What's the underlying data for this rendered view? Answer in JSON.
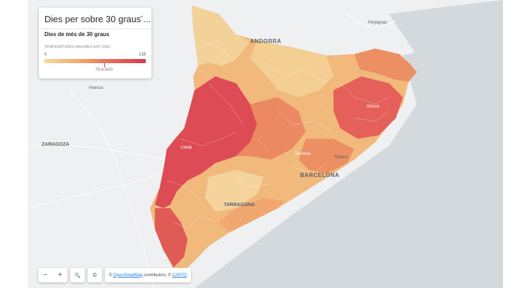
{
  "legend": {
    "title": "Dies per sobre 30 graus ...",
    "subtitle": "Dies de més de 30 graus",
    "caption": "TEMPERATURES MAXIMES ANY 2050",
    "min": "0",
    "max": "135",
    "avg": "79,4 AVG",
    "avg_value": 79.4,
    "colors": [
      "#f8d8a0",
      "#f1ab6c",
      "#e66a55",
      "#d43a4e"
    ]
  },
  "places": {
    "andorra": "ANDORRA",
    "perpignan": "Perpignan",
    "huesca": "Huesca",
    "zaragoza": "ZARAGOZA",
    "lleida": "Lleida",
    "girona": "Girona",
    "terrassa": "Terrassa",
    "mataro": "Mataró",
    "barcelona": "BARCELONA",
    "tarragona": "TARRAGONA"
  },
  "controls": {
    "zoom_out": "−",
    "zoom_in": "+",
    "search_icon": "🔍",
    "info_icon": "©",
    "attribution_prefix": "©",
    "osm_link": "OpenStreetMap",
    "contributors": "contributors, ©",
    "carto_link": "CARTO"
  }
}
